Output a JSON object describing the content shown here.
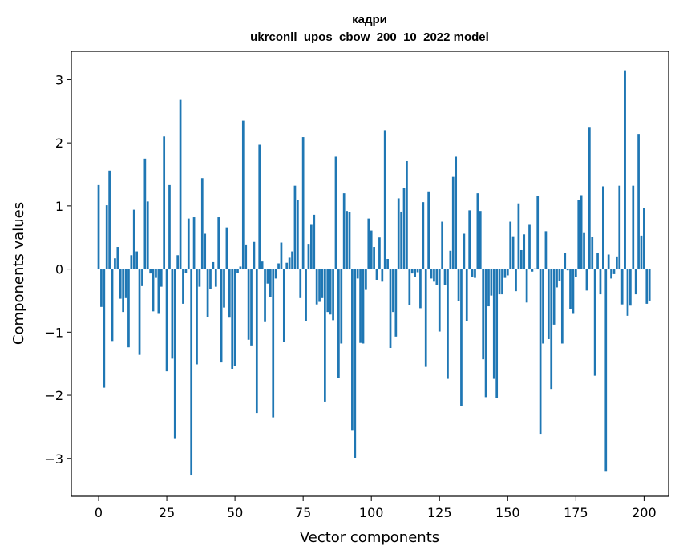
{
  "chart_data": {
    "type": "bar",
    "title": "кадри",
    "subtitle": "ukrconll_upos_cbow_200_10_2022 model",
    "xlabel": "Vector components",
    "ylabel": "Components values",
    "xlim": [
      -10,
      209
    ],
    "ylim": [
      -3.6,
      3.45
    ],
    "xticks": [
      0,
      25,
      50,
      75,
      100,
      125,
      150,
      175,
      200
    ],
    "yticks": [
      -3,
      -2,
      -1,
      0,
      1,
      2,
      3
    ],
    "bar_color": "#1f77b4",
    "values": [
      1.33,
      -0.6,
      -1.88,
      1.01,
      1.56,
      -1.14,
      0.17,
      0.35,
      -0.47,
      -0.68,
      -0.46,
      -1.24,
      0.22,
      0.94,
      0.28,
      -1.36,
      -0.27,
      1.75,
      1.07,
      -0.07,
      -0.67,
      -0.14,
      -0.71,
      -0.28,
      2.1,
      -1.62,
      1.33,
      -1.42,
      -2.68,
      0.22,
      2.68,
      -0.55,
      -0.06,
      0.8,
      -3.27,
      0.82,
      -1.51,
      -0.28,
      1.44,
      0.56,
      -0.76,
      -0.32,
      0.11,
      -0.28,
      0.82,
      -1.48,
      -0.61,
      0.66,
      -0.77,
      -1.58,
      -1.53,
      -0.06,
      0.04,
      2.35,
      0.39,
      -1.12,
      -1.21,
      0.43,
      -2.28,
      1.97,
      0.12,
      -0.84,
      -0.23,
      -0.44,
      -2.35,
      -0.15,
      0.09,
      0.42,
      -1.15,
      0.1,
      0.18,
      0.28,
      1.32,
      1.1,
      -0.46,
      2.09,
      -0.83,
      0.4,
      0.7,
      0.86,
      -0.56,
      -0.52,
      -0.46,
      -2.1,
      -0.68,
      -0.72,
      -0.81,
      1.78,
      -1.73,
      -1.18,
      1.2,
      0.92,
      0.9,
      -2.55,
      -2.99,
      -0.15,
      -1.17,
      -1.18,
      -0.33,
      0.8,
      0.61,
      0.35,
      -0.17,
      0.5,
      -0.2,
      2.2,
      0.16,
      -1.25,
      -0.68,
      -1.07,
      1.12,
      0.91,
      1.28,
      1.71,
      -0.57,
      -0.07,
      -0.13,
      -0.05,
      -0.62,
      1.06,
      -1.55,
      1.23,
      -0.15,
      -0.2,
      -0.25,
      -0.99,
      0.75,
      -0.25,
      -1.74,
      0.29,
      1.46,
      1.78,
      -0.51,
      -2.17,
      0.56,
      -0.82,
      0.93,
      -0.12,
      -0.14,
      1.2,
      0.92,
      -1.43,
      -2.03,
      -0.59,
      -0.42,
      -1.74,
      -2.04,
      -0.4,
      -0.4,
      -0.14,
      -0.1,
      0.75,
      0.52,
      -0.35,
      1.04,
      0.3,
      0.55,
      -0.53,
      0.7,
      -0.04,
      0.01,
      1.16,
      -2.61,
      -1.18,
      0.6,
      -1.11,
      -1.9,
      -0.88,
      -0.29,
      -0.19,
      -1.18,
      0.25,
      -0.02,
      -0.63,
      -0.71,
      -0.12,
      1.09,
      1.17,
      0.57,
      -0.34,
      2.24,
      0.51,
      -1.69,
      0.25,
      -0.4,
      1.31,
      -3.21,
      0.23,
      -0.15,
      -0.08,
      0.2,
      1.32,
      -0.56,
      3.15,
      -0.74,
      -0.58,
      1.32,
      -0.4,
      2.14,
      0.53,
      0.97,
      -0.55,
      -0.5
    ]
  }
}
